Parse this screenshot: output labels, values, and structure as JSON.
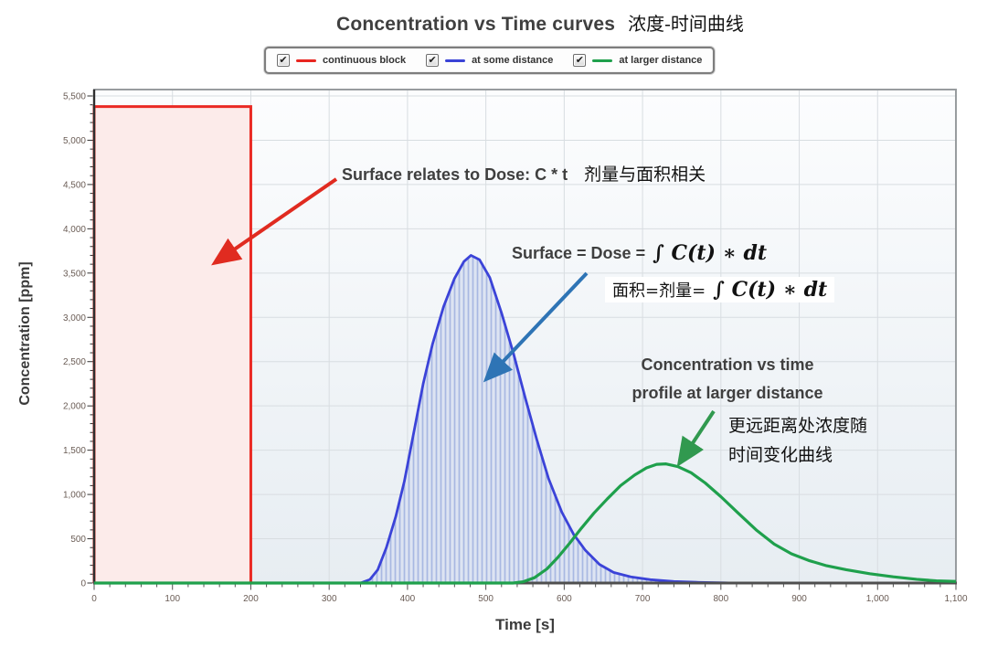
{
  "title": {
    "en": "Concentration vs Time curves",
    "zh": "浓度-时间曲线"
  },
  "legend": {
    "check_glyph": "✔",
    "items": [
      {
        "label": "continuous block",
        "color": "#e8251f",
        "checked": true
      },
      {
        "label": "at some distance",
        "color": "#3a43d6",
        "checked": true
      },
      {
        "label": "at larger distance",
        "color": "#1fa04c",
        "checked": true
      }
    ]
  },
  "axes": {
    "x": {
      "label": "Time [s]",
      "min": 0,
      "max": 1100,
      "step": 100,
      "minor_step": 20
    },
    "y": {
      "label": "Concentration  [ppm]",
      "min": 0,
      "max": 5500,
      "step": 500,
      "minor_step": 100
    }
  },
  "chart_data": {
    "type": "line",
    "title": "Concentration vs Time curves 浓度-时间曲线",
    "xlabel": "Time [s]",
    "ylabel": "Concentration [ppm]",
    "xlim": [
      0,
      1100
    ],
    "ylim": [
      0,
      5500
    ],
    "grid": true,
    "legend_position": "top",
    "series": [
      {
        "name": "continuous block",
        "type": "block",
        "color": "#ea2a24",
        "fill": "#fcebea",
        "block": {
          "t0": 0,
          "t1": 200,
          "value": 5380
        }
      },
      {
        "name": "at some distance",
        "type": "area-hatch",
        "color": "#3b43d8",
        "fill": "#dde4f2",
        "hatch": "#a8b8e2",
        "points": [
          [
            340,
            0
          ],
          [
            352,
            40
          ],
          [
            362,
            150
          ],
          [
            373,
            400
          ],
          [
            385,
            750
          ],
          [
            396,
            1150
          ],
          [
            408,
            1700
          ],
          [
            420,
            2250
          ],
          [
            432,
            2700
          ],
          [
            446,
            3120
          ],
          [
            460,
            3440
          ],
          [
            472,
            3630
          ],
          [
            481,
            3700
          ],
          [
            492,
            3650
          ],
          [
            505,
            3450
          ],
          [
            520,
            3050
          ],
          [
            535,
            2600
          ],
          [
            550,
            2100
          ],
          [
            565,
            1620
          ],
          [
            580,
            1180
          ],
          [
            597,
            800
          ],
          [
            612,
            550
          ],
          [
            627,
            370
          ],
          [
            645,
            210
          ],
          [
            663,
            120
          ],
          [
            685,
            70
          ],
          [
            710,
            38
          ],
          [
            740,
            18
          ],
          [
            772,
            8
          ],
          [
            805,
            2
          ],
          [
            815,
            0
          ]
        ]
      },
      {
        "name": "at larger distance",
        "type": "line",
        "color": "#1fa04c",
        "points": [
          [
            0,
            0
          ],
          [
            535,
            0
          ],
          [
            548,
            15
          ],
          [
            562,
            60
          ],
          [
            578,
            160
          ],
          [
            592,
            290
          ],
          [
            607,
            450
          ],
          [
            622,
            620
          ],
          [
            638,
            790
          ],
          [
            655,
            950
          ],
          [
            672,
            1100
          ],
          [
            690,
            1220
          ],
          [
            705,
            1300
          ],
          [
            718,
            1340
          ],
          [
            730,
            1345
          ],
          [
            745,
            1315
          ],
          [
            762,
            1245
          ],
          [
            780,
            1130
          ],
          [
            800,
            975
          ],
          [
            822,
            790
          ],
          [
            845,
            600
          ],
          [
            868,
            440
          ],
          [
            890,
            330
          ],
          [
            912,
            255
          ],
          [
            935,
            195
          ],
          [
            960,
            150
          ],
          [
            990,
            105
          ],
          [
            1020,
            70
          ],
          [
            1050,
            42
          ],
          [
            1075,
            25
          ],
          [
            1100,
            18
          ]
        ]
      }
    ]
  },
  "annotations": {
    "dose_note": {
      "en": "Surface relates to Dose: C * t",
      "zh": "剂量与面积相关"
    },
    "formula": {
      "en_label": "Surface = Dose =",
      "math": "∫ C(t) ∗ dt",
      "zh_label": "面积=剂量=",
      "math2": "∫ C(t) ∗ dt"
    },
    "green_note": {
      "en_line1": "Concentration vs time",
      "en_line2": "profile at larger distance",
      "zh_line1": "更远距离处浓度随",
      "zh_line2": "时间变化曲线"
    },
    "arrows": [
      {
        "name": "dose-arrow",
        "color": "#e02b20",
        "from": [
          368,
          196
        ],
        "to": [
          236,
          287
        ]
      },
      {
        "name": "surface-arrow",
        "color": "#2e74b5",
        "from": [
          642,
          299
        ],
        "to": [
          533,
          414
        ]
      },
      {
        "name": "profile-arrow",
        "color": "#31994f",
        "from": [
          781,
          450
        ],
        "to": [
          744,
          506
        ]
      }
    ]
  }
}
